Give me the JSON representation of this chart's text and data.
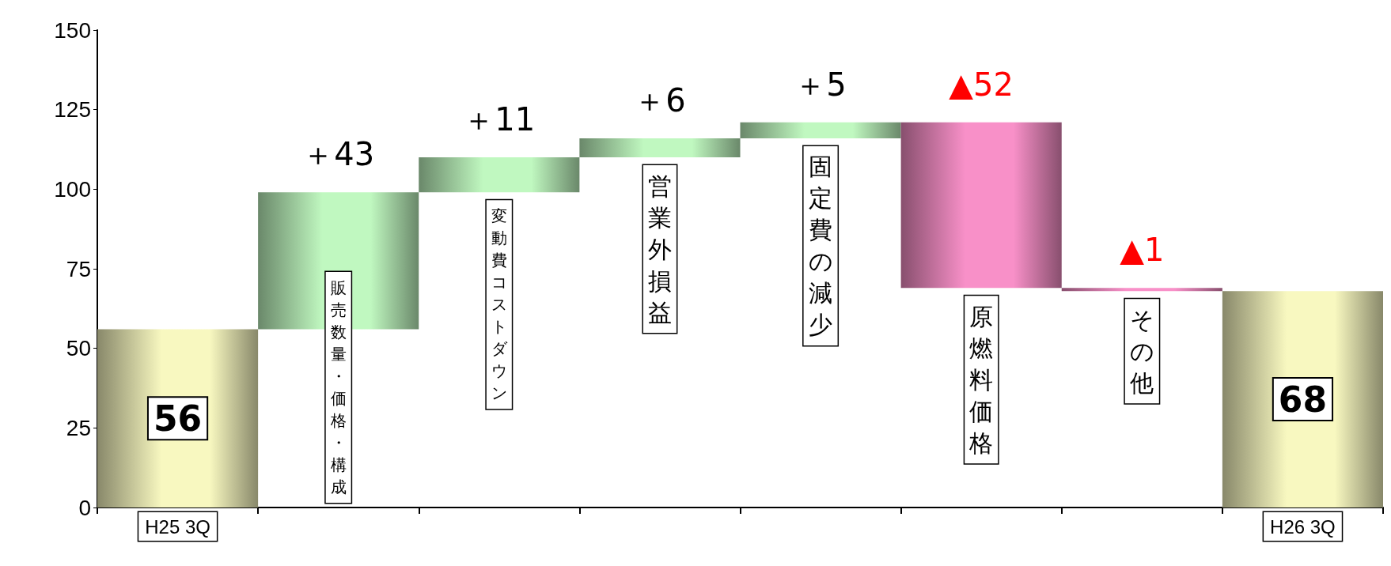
{
  "chart_data": {
    "type": "bar",
    "categories": [
      "H25 3Q",
      "販売数量・価格・構成",
      "変動費コストダウン",
      "営業外損益",
      "固定費の減少",
      "原燃料価格",
      "その他",
      "H26 3Q"
    ],
    "base": [
      0,
      56,
      99,
      110,
      116,
      121,
      69,
      0
    ],
    "values": [
      56,
      43,
      11,
      6,
      5,
      -52,
      -1,
      68
    ],
    "value_labels": [
      "56",
      "＋43",
      "＋11",
      "＋6",
      "＋5",
      "▲52",
      "▲1",
      "68"
    ],
    "colors": [
      "#f8f8c0",
      "#c0f8c0",
      "#c0f8c0",
      "#c0f8c0",
      "#c0f8c0",
      "#f890c8",
      "#f890c8",
      "#f8f8c0"
    ],
    "ylim": [
      0,
      150
    ],
    "yticks": [
      0,
      25,
      50,
      75,
      100,
      125,
      150
    ],
    "grid": false
  }
}
